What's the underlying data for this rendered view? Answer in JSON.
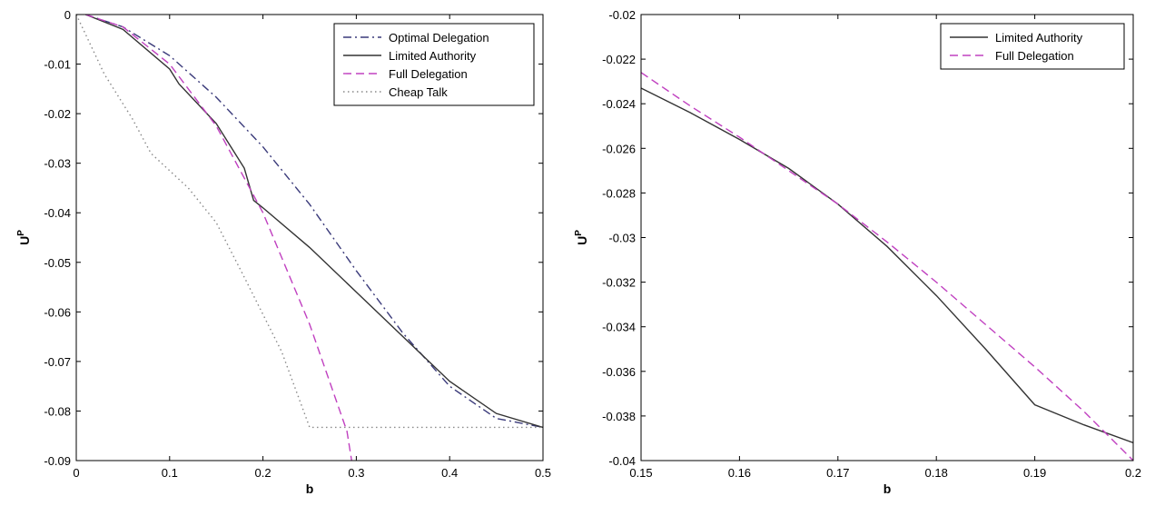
{
  "chart_data": [
    {
      "type": "line",
      "xlabel": "b",
      "ylabel": "U",
      "ylabel_sup": "P",
      "xlim": [
        0,
        0.5
      ],
      "ylim": [
        -0.09,
        0
      ],
      "xticks": [
        0,
        0.1,
        0.2,
        0.3,
        0.4,
        0.5
      ],
      "xtick_labels": [
        "0",
        "0.1",
        "0.2",
        "0.3",
        "0.4",
        "0.5"
      ],
      "yticks": [
        0,
        -0.01,
        -0.02,
        -0.03,
        -0.04,
        -0.05,
        -0.06,
        -0.07,
        -0.08,
        -0.09
      ],
      "ytick_labels": [
        "0",
        "-0.01",
        "-0.02",
        "-0.03",
        "-0.04",
        "-0.05",
        "-0.06",
        "-0.07",
        "-0.08",
        "-0.09"
      ],
      "legend_position": "top-right",
      "series": [
        {
          "name": "Optimal Delegation",
          "color": "#3a3a7a",
          "dash": "dashdot",
          "x": [
            0.01,
            0.05,
            0.1,
            0.15,
            0.2,
            0.25,
            0.3,
            0.35,
            0.4,
            0.45,
            0.5
          ],
          "y": [
            0,
            -0.0025,
            -0.0083,
            -0.0167,
            -0.0267,
            -0.0383,
            -0.0517,
            -0.0643,
            -0.075,
            -0.0815,
            -0.0833
          ]
        },
        {
          "name": "Limited Authority",
          "color": "#333333",
          "dash": "solid",
          "x": [
            0.01,
            0.05,
            0.1,
            0.11,
            0.15,
            0.18,
            0.19,
            0.2,
            0.25,
            0.3,
            0.35,
            0.4,
            0.45,
            0.5
          ],
          "y": [
            0,
            -0.003,
            -0.011,
            -0.014,
            -0.022,
            -0.031,
            -0.0375,
            -0.039,
            -0.047,
            -0.056,
            -0.065,
            -0.074,
            -0.0805,
            -0.0833
          ]
        },
        {
          "name": "Full Delegation",
          "color": "#c040c0",
          "dash": "dashed",
          "x": [
            0.01,
            0.05,
            0.1,
            0.15,
            0.2,
            0.25,
            0.29,
            0.295
          ],
          "y": [
            0,
            -0.0025,
            -0.01,
            -0.0225,
            -0.04,
            -0.0625,
            -0.0841,
            -0.09
          ]
        },
        {
          "name": "Cheap Talk",
          "color": "#888888",
          "dash": "dotted",
          "x": [
            0,
            0.03,
            0.06,
            0.08,
            0.12,
            0.15,
            0.18,
            0.22,
            0.25,
            0.3,
            0.35,
            0.4,
            0.45,
            0.5
          ],
          "y": [
            0,
            -0.012,
            -0.021,
            -0.028,
            -0.035,
            -0.042,
            -0.053,
            -0.068,
            -0.0833,
            -0.0833,
            -0.0833,
            -0.0833,
            -0.0833,
            -0.0833
          ]
        }
      ]
    },
    {
      "type": "line",
      "xlabel": "b",
      "ylabel": "U",
      "ylabel_sup": "P",
      "xlim": [
        0.15,
        0.2
      ],
      "ylim": [
        -0.04,
        -0.02
      ],
      "xticks": [
        0.15,
        0.16,
        0.17,
        0.18,
        0.19,
        0.2
      ],
      "xtick_labels": [
        "0.15",
        "0.16",
        "0.17",
        "0.18",
        "0.19",
        "0.2"
      ],
      "yticks": [
        -0.02,
        -0.022,
        -0.024,
        -0.026,
        -0.028,
        -0.03,
        -0.032,
        -0.034,
        -0.036,
        -0.038,
        -0.04
      ],
      "ytick_labels": [
        "-0.02",
        "-0.022",
        "-0.024",
        "-0.026",
        "-0.028",
        "-0.03",
        "-0.032",
        "-0.034",
        "-0.036",
        "-0.038",
        "-0.04"
      ],
      "legend_position": "top-right",
      "series": [
        {
          "name": "Limited Authority",
          "color": "#333333",
          "dash": "solid",
          "x": [
            0.15,
            0.155,
            0.16,
            0.165,
            0.17,
            0.175,
            0.18,
            0.185,
            0.19,
            0.195,
            0.2
          ],
          "y": [
            -0.0233,
            -0.0244,
            -0.0256,
            -0.0269,
            -0.0285,
            -0.0304,
            -0.0326,
            -0.035,
            -0.0375,
            -0.0384,
            -0.0392
          ]
        },
        {
          "name": "Full Delegation",
          "color": "#c040c0",
          "dash": "dashed",
          "x": [
            0.15,
            0.155,
            0.16,
            0.165,
            0.17,
            0.175,
            0.18,
            0.185,
            0.19,
            0.195,
            0.2
          ],
          "y": [
            -0.0226,
            -0.0241,
            -0.0255,
            -0.027,
            -0.0285,
            -0.0302,
            -0.032,
            -0.0339,
            -0.0358,
            -0.0378,
            -0.04
          ]
        }
      ]
    }
  ]
}
